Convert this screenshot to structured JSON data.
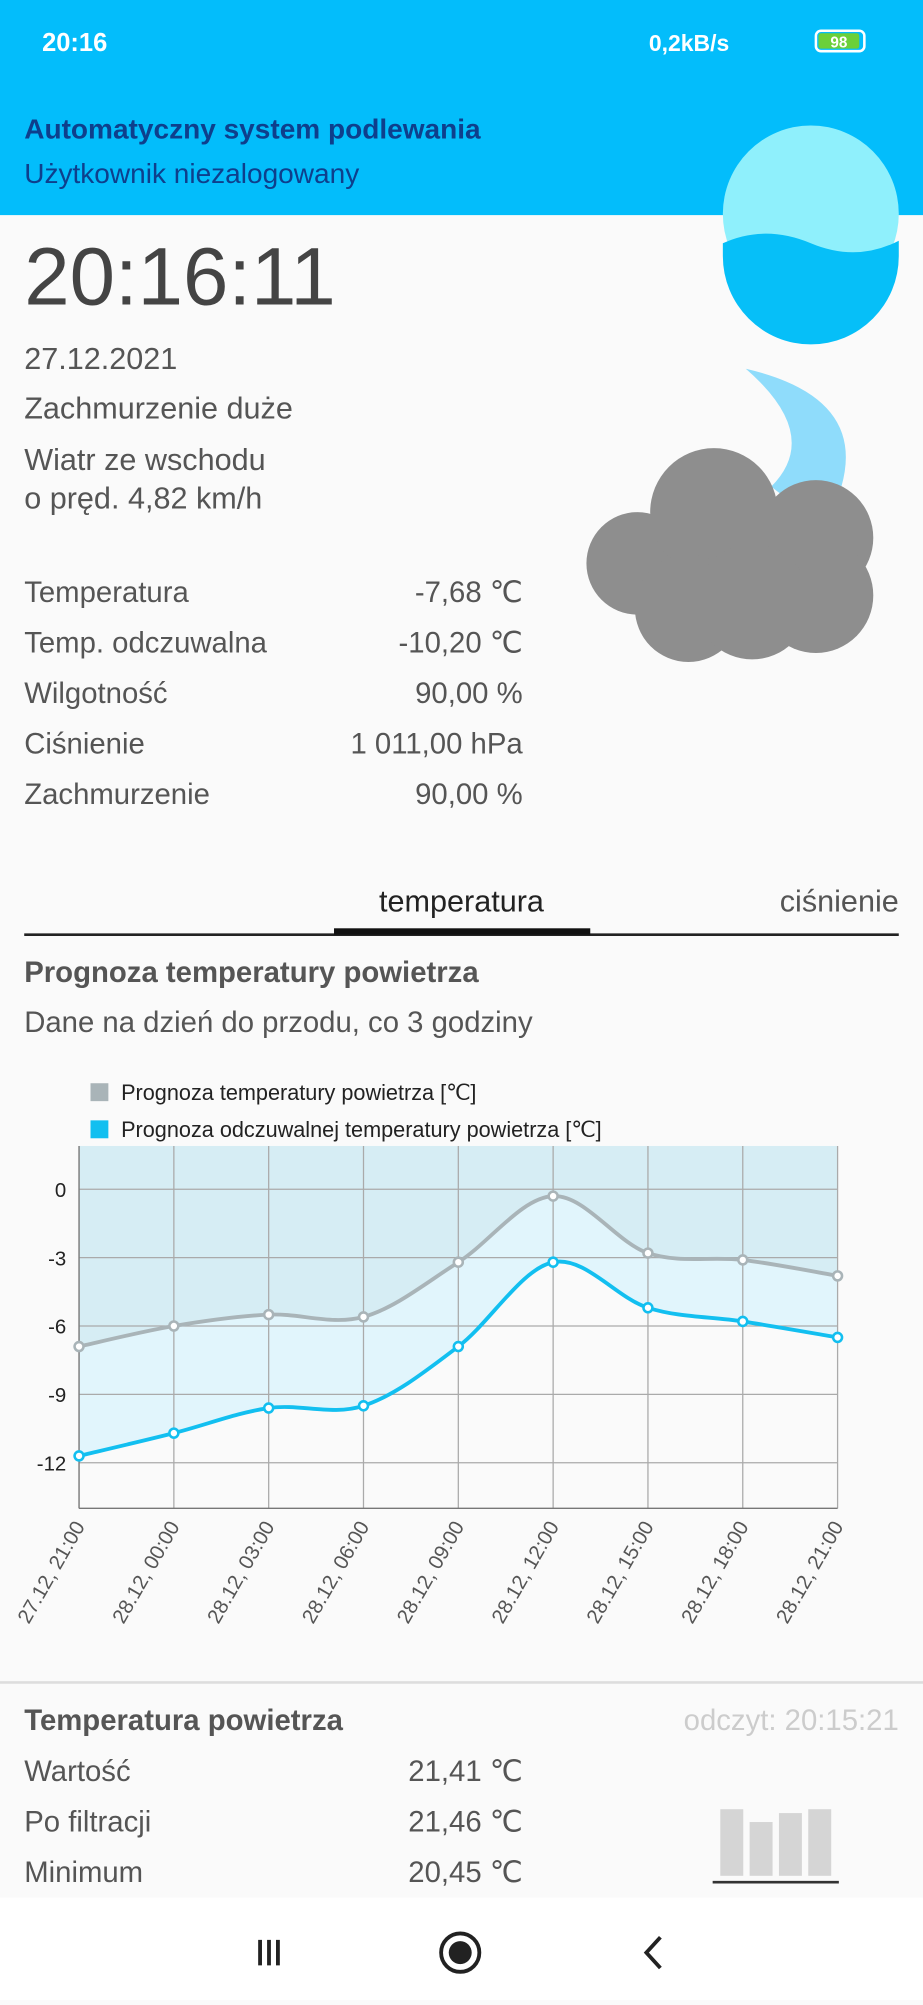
{
  "status_bar": {
    "time": "20:16",
    "speed": "0,2kB/s",
    "battery": "98"
  },
  "header": {
    "title": "Automatyczny system podlewania",
    "subtitle": "Użytkownik niezalogowany"
  },
  "weather": {
    "clock": "20:16:11",
    "date": "27.12.2021",
    "clouds": "Zachmurzenie duże",
    "wind_1": "Wiatr ze wschodu",
    "wind_2": "o pręd. 4,82 km/h",
    "rows": [
      [
        "Temperatura",
        "-7,68 ℃"
      ],
      [
        "Temp. odczuwalna",
        "-10,20 ℃"
      ],
      [
        "Wilgotność",
        "90,00 %"
      ],
      [
        "Ciśnienie",
        "1 011,00 hPa"
      ],
      [
        "Zachmurzenie",
        "90,00 %"
      ]
    ]
  },
  "tabs": [
    "temperatura",
    "ciśnienie"
  ],
  "chart_data": {
    "type": "line",
    "title": "Prognoza temperatury powietrza",
    "subtitle": "Dane na dzień do przodu, co 3 godziny",
    "categories": [
      "27.12, 21:00",
      "28.12, 00:00",
      "28.12, 03:00",
      "28.12, 06:00",
      "28.12, 09:00",
      "28.12, 12:00",
      "28.12, 15:00",
      "28.12, 18:00",
      "28.12, 21:00"
    ],
    "series": [
      {
        "name": "Prognoza temperatury powietrza [℃]",
        "color": "#a9b4b8",
        "values": [
          -6.9,
          -6.0,
          -5.5,
          -5.6,
          -3.2,
          -0.3,
          -2.8,
          -3.1,
          -3.8
        ]
      },
      {
        "name": "Prognoza odczuwalnej temperatury powietrza [℃]",
        "color": "#12bff0",
        "values": [
          -11.7,
          -10.7,
          -9.6,
          -9.5,
          -6.9,
          -3.2,
          -5.2,
          -5.8,
          -6.5
        ]
      }
    ],
    "ylim": [
      -14,
      1.9
    ],
    "yticks": [
      0,
      -3,
      -6,
      -9,
      -12
    ],
    "grid": true
  },
  "sensor": {
    "title": "Temperatura powietrza",
    "reading": "odczyt: 20:15:21",
    "rows": [
      [
        "Wartość",
        "21,41 ℃"
      ],
      [
        "Po filtracji",
        "21,46 ℃"
      ],
      [
        "Minimum",
        "20,45 ℃"
      ]
    ]
  }
}
